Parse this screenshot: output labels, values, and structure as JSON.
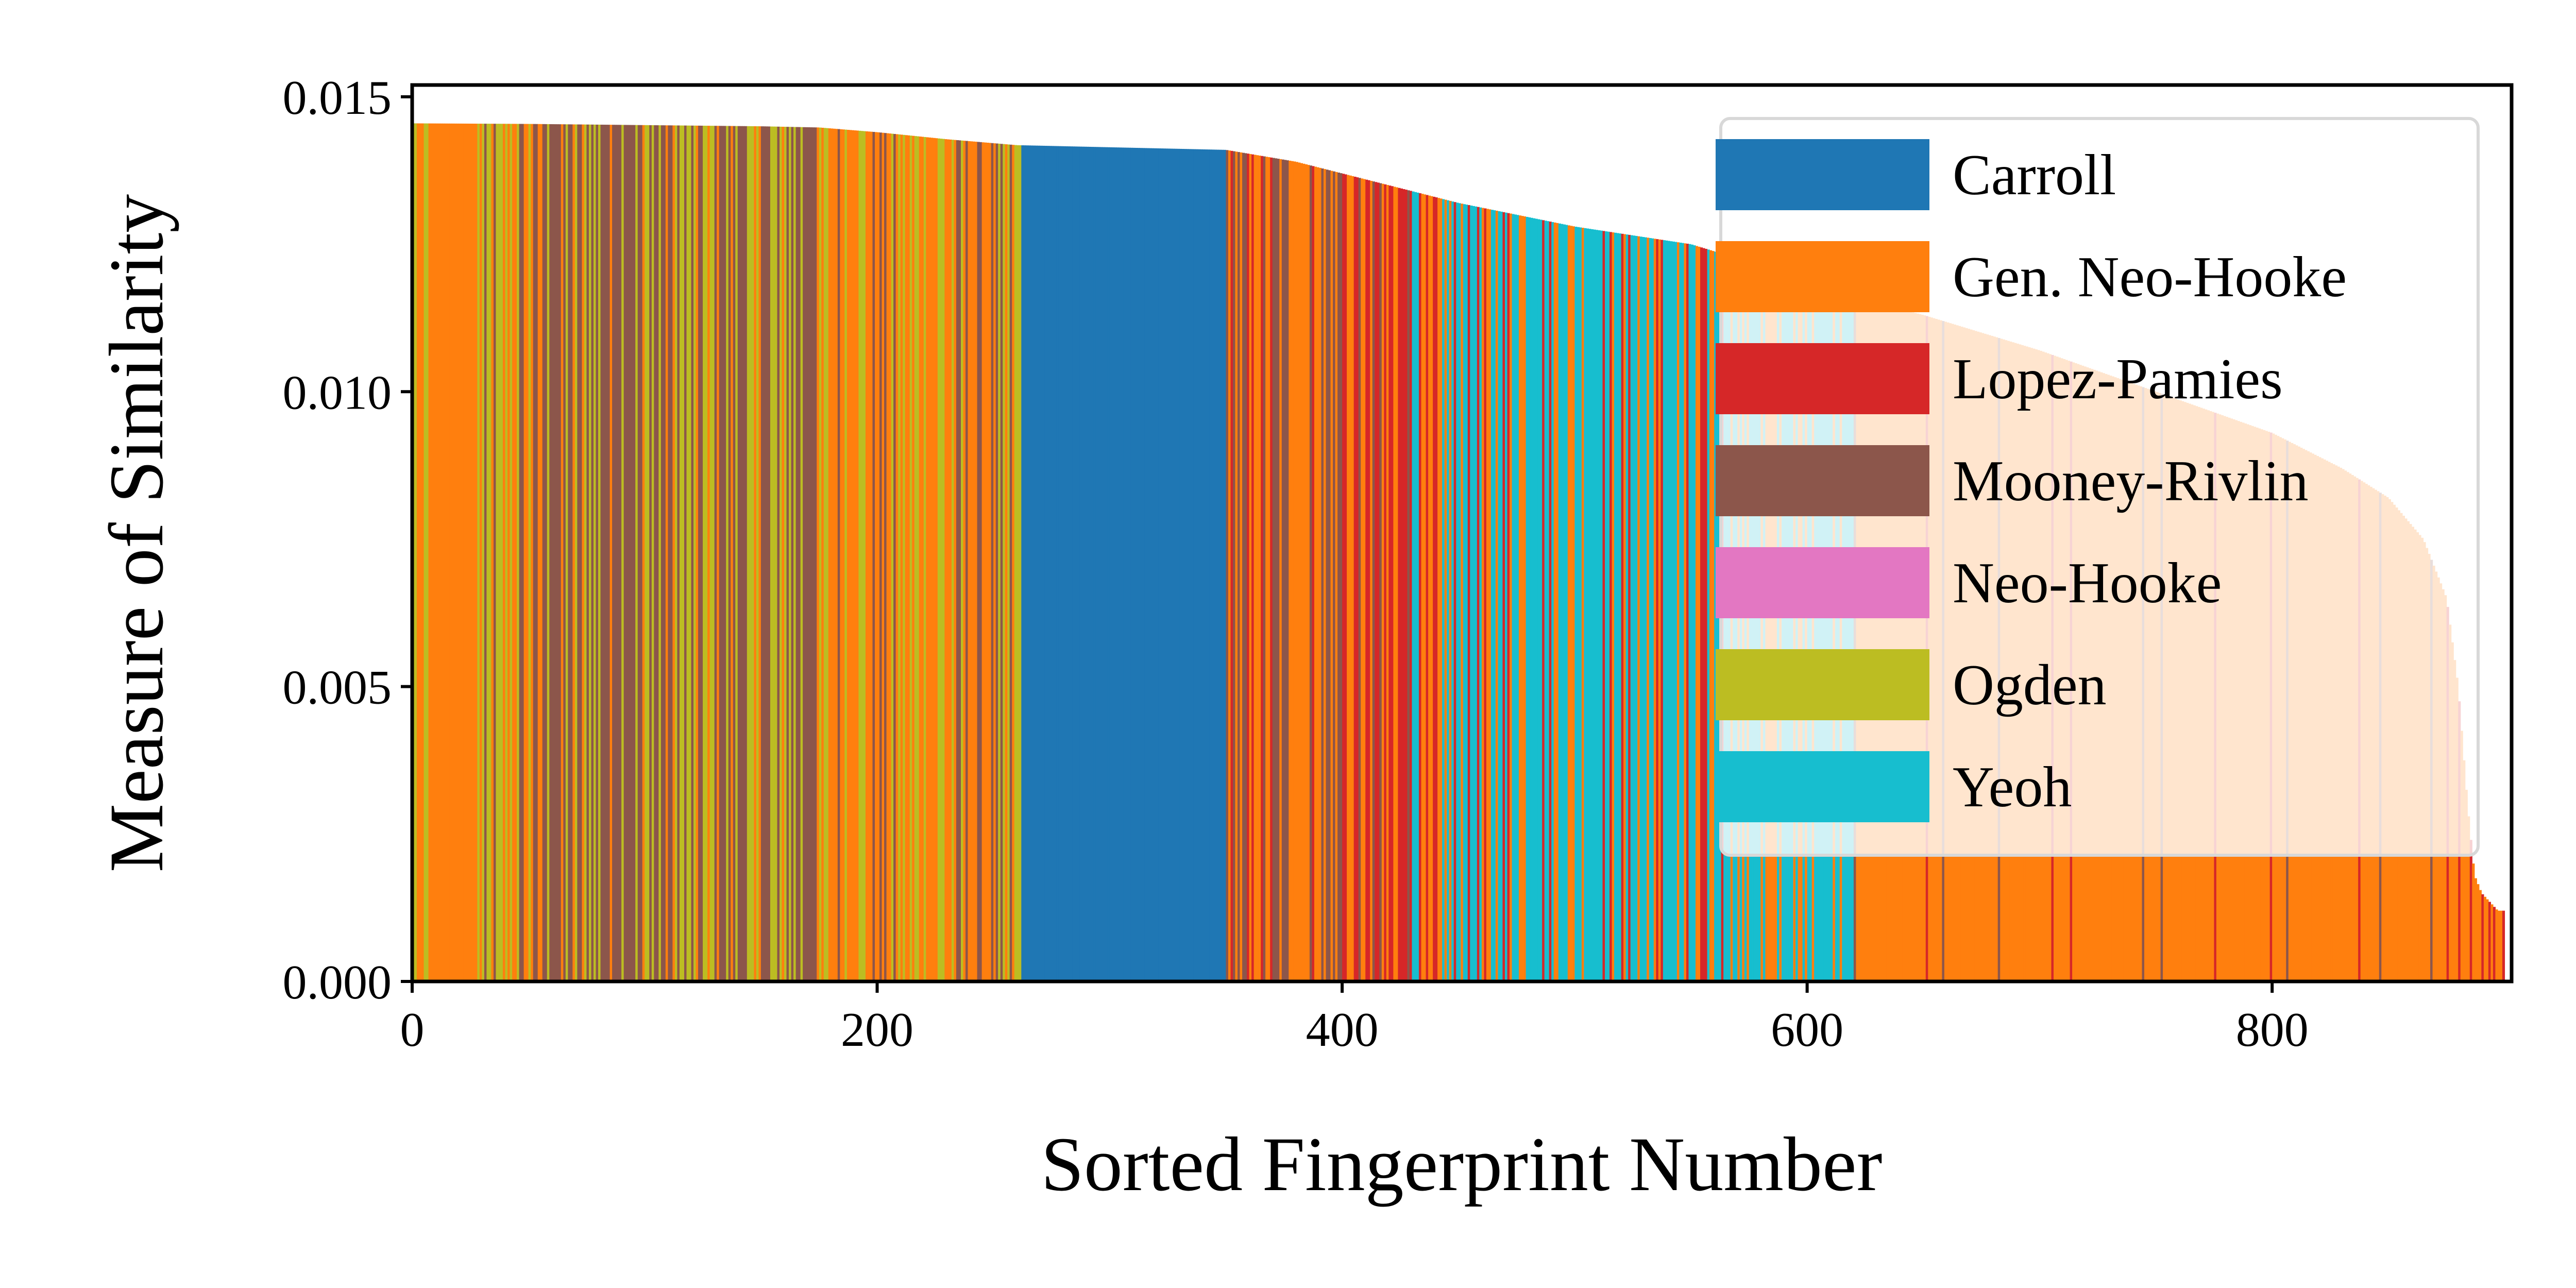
{
  "chart_data": {
    "type": "bar",
    "xlabel": "Sorted Fingerprint Number",
    "ylabel": "Measure of Similarity",
    "xlim": [
      0,
      903
    ],
    "ylim": [
      0,
      0.0152
    ],
    "x_ticks": [
      "0",
      "200",
      "400",
      "600",
      "800"
    ],
    "x_tick_values": [
      0,
      200,
      400,
      600,
      800
    ],
    "y_ticks": [
      "0.000",
      "0.005",
      "0.010",
      "0.015"
    ],
    "y_tick_values": [
      0,
      0.005,
      0.01,
      0.015
    ],
    "grid": false,
    "legend_position": "top-right",
    "legend": [
      {
        "name": "Carroll",
        "color": "#1f77b4"
      },
      {
        "name": "Gen. Neo-Hooke",
        "color": "#ff7f0e"
      },
      {
        "name": "Lopez-Pamies",
        "color": "#d62728"
      },
      {
        "name": "Mooney-Rivlin",
        "color": "#8c564b"
      },
      {
        "name": "Neo-Hooke",
        "color": "#e377c2"
      },
      {
        "name": "Ogden",
        "color": "#bcbd22"
      },
      {
        "name": "Yeoh",
        "color": "#17becf"
      }
    ],
    "similarity_profile": [
      [
        0,
        0.01455
      ],
      [
        50,
        0.01454
      ],
      [
        100,
        0.01452
      ],
      [
        150,
        0.0145
      ],
      [
        175,
        0.01448
      ],
      [
        200,
        0.0144
      ],
      [
        230,
        0.01428
      ],
      [
        260,
        0.01418
      ],
      [
        350,
        0.0141
      ],
      [
        380,
        0.0139
      ],
      [
        400,
        0.0137
      ],
      [
        450,
        0.0132
      ],
      [
        500,
        0.0128
      ],
      [
        550,
        0.0125
      ],
      [
        575,
        0.0122
      ],
      [
        600,
        0.0118
      ],
      [
        650,
        0.0113
      ],
      [
        700,
        0.0107
      ],
      [
        750,
        0.01
      ],
      [
        800,
        0.0093
      ],
      [
        830,
        0.0087
      ],
      [
        850,
        0.0082
      ],
      [
        865,
        0.0075
      ],
      [
        875,
        0.0065
      ],
      [
        880,
        0.005
      ],
      [
        884,
        0.003
      ],
      [
        887,
        0.0018
      ],
      [
        890,
        0.0015
      ],
      [
        897,
        0.0012
      ],
      [
        900,
        0.0012
      ]
    ],
    "segments": [
      {
        "start": 0,
        "end": 2,
        "model": "Ogden"
      },
      {
        "start": 2,
        "end": 5,
        "model": "Gen. Neo-Hooke"
      },
      {
        "start": 5,
        "end": 7,
        "model": "Ogden"
      },
      {
        "start": 7,
        "end": 11,
        "model": "Gen. Neo-Hooke"
      },
      {
        "start": 11,
        "end": 28,
        "model": "Gen. Neo-Hooke"
      },
      {
        "start": 28,
        "end": 52,
        "model": "Mixed: Gen. Neo-Hooke / Ogden / Mooney-Rivlin"
      },
      {
        "start": 52,
        "end": 175,
        "model": "Mixed: Mooney-Rivlin / Ogden / Gen. Neo-Hooke"
      },
      {
        "start": 175,
        "end": 262,
        "model": "Mixed: Gen. Neo-Hooke / Ogden / Mooney-Rivlin"
      },
      {
        "start": 262,
        "end": 350,
        "model": "Carroll"
      },
      {
        "start": 350,
        "end": 400,
        "model": "Mixed: Gen. Neo-Hooke / Mooney-Rivlin / Lopez-Pamies"
      },
      {
        "start": 400,
        "end": 430,
        "model": "Mixed: Lopez-Pamies / Gen. Neo-Hooke / Mooney-Rivlin"
      },
      {
        "start": 430,
        "end": 565,
        "model": "Mixed: Yeoh / Gen. Neo-Hooke / Lopez-Pamies"
      },
      {
        "start": 565,
        "end": 620,
        "model": "Mixed: Yeoh / Gen. Neo-Hooke"
      },
      {
        "start": 620,
        "end": 900,
        "model": "Gen. Neo-Hooke"
      }
    ]
  }
}
